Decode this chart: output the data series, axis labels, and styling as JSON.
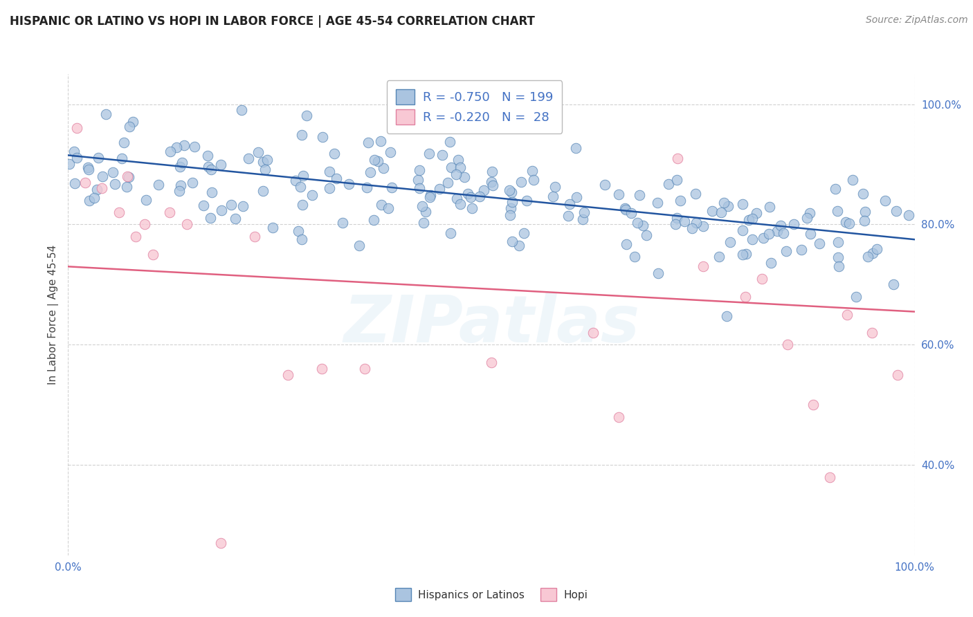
{
  "title": "HISPANIC OR LATINO VS HOPI IN LABOR FORCE | AGE 45-54 CORRELATION CHART",
  "source": "Source: ZipAtlas.com",
  "ylabel": "In Labor Force | Age 45-54",
  "xlim": [
    0,
    1.0
  ],
  "ylim": [
    0.25,
    1.05
  ],
  "blue_R": -0.75,
  "blue_N": 199,
  "pink_R": -0.22,
  "pink_N": 28,
  "blue_dot_color": "#aac4e0",
  "blue_edge_color": "#5585b5",
  "blue_line_color": "#2255a0",
  "pink_dot_color": "#f8c8d4",
  "pink_edge_color": "#e080a0",
  "pink_line_color": "#e06080",
  "tick_label_color": "#4472c4",
  "right_ytick_labels": [
    "40.0%",
    "60.0%",
    "80.0%",
    "100.0%"
  ],
  "right_ytick_values": [
    0.4,
    0.6,
    0.8,
    1.0
  ],
  "grid_color": "#cccccc",
  "background_color": "#ffffff",
  "watermark_text": "ZIPatlas",
  "title_fontsize": 12,
  "source_fontsize": 10,
  "legend_color": "#4472c4",
  "blue_trend_start": 0.915,
  "blue_trend_end": 0.775,
  "pink_trend_start": 0.73,
  "pink_trend_end": 0.655
}
